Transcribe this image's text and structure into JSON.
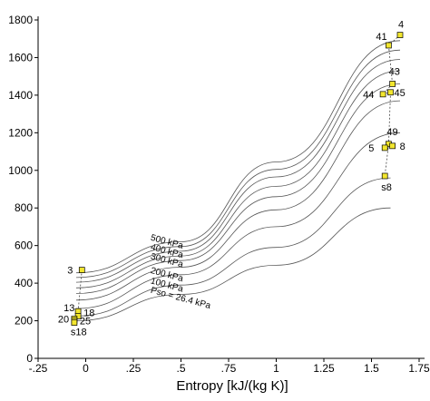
{
  "chart_data": {
    "type": "line",
    "xlabel": "Entropy [kJ/(kg K)]",
    "ylabel": "",
    "xlim": [
      -0.25,
      1.75
    ],
    "ylim": [
      0,
      1800
    ],
    "x_ticks": [
      -0.25,
      0,
      0.25,
      0.5,
      0.75,
      1,
      1.25,
      1.5,
      1.75
    ],
    "x_tick_labels": [
      "-.25",
      "0",
      ".25",
      ".5",
      ".75",
      "1",
      "1.25",
      "1.5",
      "1.75"
    ],
    "y_ticks": [
      0,
      200,
      400,
      600,
      800,
      1000,
      1200,
      1400,
      1600,
      1800
    ],
    "y_tick_labels": [
      "0",
      "200",
      "400",
      "600",
      "800",
      "1000",
      "1200",
      "1400",
      "1600",
      "1800"
    ],
    "isobars": [
      {
        "label": "Pso = 26.4 kPa",
        "points": [
          [
            -0.05,
            200
          ],
          [
            0.5,
            340
          ],
          [
            1.0,
            495
          ],
          [
            1.6,
            800
          ]
        ]
      },
      {
        "label": "100 kPa",
        "points": [
          [
            -0.05,
            225
          ],
          [
            0.5,
            390
          ],
          [
            1.0,
            590
          ],
          [
            1.6,
            960
          ]
        ]
      },
      {
        "label": "200 kPa",
        "points": [
          [
            -0.05,
            265
          ],
          [
            0.5,
            445
          ],
          [
            1.0,
            700
          ],
          [
            1.65,
            1200
          ]
        ]
      },
      {
        "label": "",
        "points": [
          [
            -0.05,
            310
          ],
          [
            0.5,
            485
          ],
          [
            1.0,
            790
          ],
          [
            1.65,
            1370
          ]
        ]
      },
      {
        "label": "300 kPa",
        "points": [
          [
            -0.05,
            345
          ],
          [
            0.5,
            520
          ],
          [
            1.0,
            860
          ],
          [
            1.65,
            1460
          ]
        ]
      },
      {
        "label": "",
        "points": [
          [
            -0.05,
            375
          ],
          [
            0.5,
            545
          ],
          [
            1.0,
            915
          ],
          [
            1.65,
            1530
          ]
        ]
      },
      {
        "label": "400 kPa",
        "points": [
          [
            -0.05,
            405
          ],
          [
            0.5,
            570
          ],
          [
            1.0,
            965
          ],
          [
            1.65,
            1590
          ]
        ]
      },
      {
        "label": "",
        "points": [
          [
            -0.05,
            430
          ],
          [
            0.5,
            595
          ],
          [
            1.0,
            1005
          ],
          [
            1.65,
            1640
          ]
        ]
      },
      {
        "label": "500 kPa",
        "points": [
          [
            -0.05,
            455
          ],
          [
            0.5,
            620
          ],
          [
            1.0,
            1045
          ],
          [
            1.65,
            1690
          ]
        ]
      }
    ],
    "state_points": [
      {
        "label": "3",
        "x": -0.02,
        "y": 470
      },
      {
        "label": "13",
        "x": -0.04,
        "y": 250
      },
      {
        "label": "18",
        "x": -0.04,
        "y": 225
      },
      {
        "label": "20",
        "x": -0.06,
        "y": 210
      },
      {
        "label": "25",
        "x": -0.06,
        "y": 200
      },
      {
        "label": "s18",
        "x": -0.06,
        "y": 190
      },
      {
        "label": "4",
        "x": 1.65,
        "y": 1720
      },
      {
        "label": "41",
        "x": 1.59,
        "y": 1665
      },
      {
        "label": "43",
        "x": 1.61,
        "y": 1460
      },
      {
        "label": "44",
        "x": 1.56,
        "y": 1405
      },
      {
        "label": "45",
        "x": 1.6,
        "y": 1415
      },
      {
        "label": "49",
        "x": 1.59,
        "y": 1140
      },
      {
        "label": "5",
        "x": 1.57,
        "y": 1120
      },
      {
        "label": "8",
        "x": 1.61,
        "y": 1130
      },
      {
        "label": "s8",
        "x": 1.57,
        "y": 970
      }
    ],
    "connections": [
      [
        "3",
        "13"
      ],
      [
        "13",
        "18"
      ],
      [
        "4",
        "41"
      ],
      [
        "41",
        "43"
      ],
      [
        "43",
        "44"
      ],
      [
        "44",
        "45"
      ],
      [
        "45",
        "49"
      ],
      [
        "49",
        "5"
      ],
      [
        "5",
        "8"
      ],
      [
        "49",
        "s8"
      ]
    ],
    "grid": false,
    "colors": {
      "isobar": "#555555",
      "marker_fill": "#f2e62f",
      "marker_stroke": "#000000",
      "axis": "#000000"
    }
  }
}
